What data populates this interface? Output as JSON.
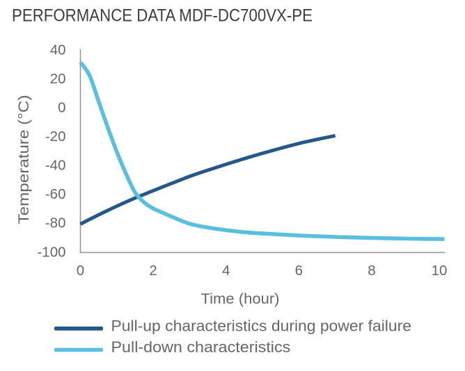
{
  "title": "PERFORMANCE DATA MDF-DC700VX-PE",
  "colors": {
    "title_text": "#3a3e45",
    "label_text": "#63666a",
    "axis_line": "#96989b",
    "pull_up": "#24588c",
    "pull_down": "#5abee1",
    "background": "#ffffff"
  },
  "chart_data": {
    "type": "line",
    "title": "PERFORMANCE DATA MDF-DC700VX-PE",
    "xlabel": "Time (hour)",
    "ylabel": "Temperature (°C)",
    "xlim": [
      0,
      10
    ],
    "ylim": [
      -100,
      40
    ],
    "xticks": [
      0,
      2,
      4,
      6,
      8,
      10
    ],
    "yticks": [
      40,
      20,
      0,
      -20,
      -40,
      -60,
      -80,
      -100
    ],
    "grid": false,
    "legend_position": "bottom-left",
    "series": [
      {
        "name": "Pull-up characteristics during power failure",
        "color": "#24588c",
        "x": [
          0,
          0.5,
          1,
          1.5,
          2,
          2.5,
          3,
          3.5,
          4,
          4.5,
          5,
          5.5,
          6,
          6.5,
          7
        ],
        "y": [
          -81,
          -74.6,
          -68.6,
          -63,
          -57.9,
          -52.9,
          -48,
          -43.7,
          -39.6,
          -35.7,
          -32,
          -28.5,
          -25.2,
          -22.4,
          -19.8
        ]
      },
      {
        "name": "Pull-down characteristics",
        "color": "#5abee1",
        "x": [
          0,
          0.25,
          0.5,
          0.75,
          1,
          1.25,
          1.5,
          1.75,
          2,
          2.25,
          2.5,
          3,
          3.5,
          4,
          4.5,
          5,
          6,
          7,
          8,
          9,
          10
        ],
        "y": [
          31,
          22,
          4,
          -14,
          -31,
          -46,
          -59,
          -66,
          -70.2,
          -73,
          -75.8,
          -80.8,
          -83.4,
          -85.2,
          -86.6,
          -87.5,
          -88.9,
          -89.9,
          -90.6,
          -91.1,
          -91.4
        ]
      }
    ]
  },
  "legend": {
    "items": [
      {
        "label": "Pull-up characteristics during power failure",
        "color": "#24588c"
      },
      {
        "label": "Pull-down characteristics",
        "color": "#5abee1"
      }
    ]
  }
}
